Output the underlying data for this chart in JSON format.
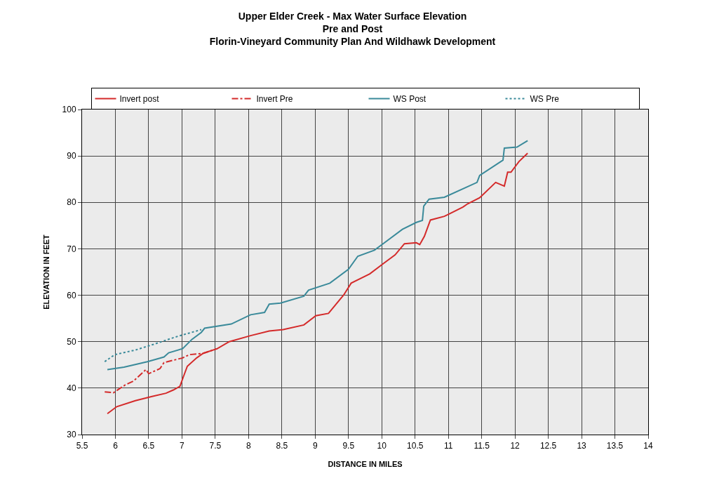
{
  "chart_data": {
    "type": "line",
    "title": "Upper Elder Creek - Max Water Surface Elevation",
    "subtitle": "Pre and Post\nFlorin-Vineyard Community Plan And Wildhawk Development",
    "xlabel": "DISTANCE IN MILES",
    "ylabel": "ELEVATION IN FEET",
    "xlim": [
      5.5,
      14
    ],
    "xticks": [
      5.5,
      6,
      6.5,
      7,
      7.5,
      8,
      8.5,
      9,
      9.5,
      10,
      10.5,
      11,
      11.5,
      12,
      12.5,
      13,
      13.5,
      14
    ],
    "ylim": [
      30,
      100
    ],
    "yticks": [
      30,
      40,
      50,
      60,
      70,
      80,
      90,
      100
    ],
    "grid": true,
    "legend": "top",
    "marker": "none",
    "series": [
      {
        "name": "Invert post",
        "color": "#d42a2a",
        "line_style": "solid",
        "x": [
          5.88,
          6.02,
          6.3,
          6.55,
          6.76,
          6.87,
          6.97,
          7.02,
          7.08,
          7.22,
          7.32,
          7.53,
          7.71,
          8.03,
          8.31,
          8.52,
          8.83,
          9.01,
          9.2,
          9.43,
          9.54,
          9.82,
          10.03,
          10.2,
          10.34,
          10.52,
          10.57,
          10.64,
          10.73,
          10.94,
          11.01,
          11.22,
          11.29,
          11.47,
          11.71,
          11.84,
          11.89,
          11.94,
          12.06,
          12.19
        ],
        "values": [
          34.5,
          36.0,
          37.3,
          38.2,
          38.9,
          39.6,
          40.4,
          42.4,
          44.7,
          46.5,
          47.5,
          48.5,
          50.0,
          51.3,
          52.3,
          52.6,
          53.6,
          55.6,
          56.1,
          60.1,
          62.6,
          64.6,
          66.9,
          68.7,
          71.1,
          71.3,
          70.9,
          72.7,
          76.2,
          77.0,
          77.5,
          79.0,
          79.7,
          81.0,
          84.3,
          83.5,
          86.5,
          86.5,
          88.8,
          90.6
        ]
      },
      {
        "name": "Invert Pre",
        "color": "#d42a2a",
        "line_style": "dashdot",
        "x": [
          5.84,
          5.97,
          6.15,
          6.27,
          6.46,
          6.5,
          6.67,
          6.73,
          6.87,
          7.01,
          7.11,
          7.32,
          7.53
        ],
        "values": [
          39.2,
          39.0,
          40.7,
          41.5,
          44.0,
          43.1,
          44.2,
          45.5,
          46.0,
          46.5,
          47.2,
          47.5,
          48.5
        ]
      },
      {
        "name": "WS Post",
        "color": "#3a8a9a",
        "line_style": "solid",
        "x": [
          5.88,
          6.13,
          6.48,
          6.73,
          6.8,
          7.01,
          7.15,
          7.29,
          7.34,
          7.74,
          8.03,
          8.24,
          8.31,
          8.48,
          8.83,
          8.9,
          9.22,
          9.5,
          9.64,
          9.89,
          10.03,
          10.31,
          10.52,
          10.61,
          10.63,
          10.71,
          10.94,
          11.43,
          11.47,
          11.82,
          11.84,
          12.03,
          12.19
        ],
        "values": [
          44.0,
          44.5,
          45.7,
          46.7,
          47.6,
          48.5,
          50.5,
          52.0,
          52.9,
          53.8,
          55.8,
          56.3,
          58.1,
          58.3,
          59.8,
          61.1,
          62.6,
          65.6,
          68.4,
          69.7,
          71.2,
          74.2,
          75.7,
          76.1,
          79.2,
          80.7,
          81.1,
          84.3,
          85.8,
          89.1,
          91.7,
          91.9,
          93.3
        ]
      },
      {
        "name": "WS Pre",
        "color": "#3a8a9a",
        "line_style": "dotted",
        "x": [
          5.84,
          5.99,
          6.3,
          6.59,
          6.9,
          7.29
        ],
        "values": [
          45.7,
          47.2,
          48.2,
          49.5,
          51.0,
          52.6
        ]
      }
    ]
  }
}
